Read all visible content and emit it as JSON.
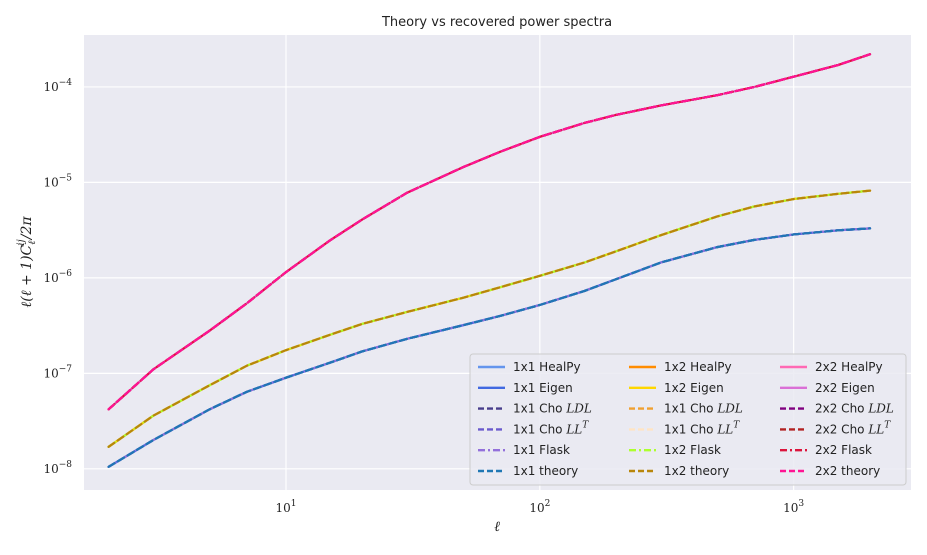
{
  "chart_data": {
    "type": "line",
    "title": "Theory vs recovered power spectra",
    "xlabel": "ℓ",
    "ylabel": "ℓ(ℓ + 1)C_ℓ^{ij}/2π",
    "xscale": "log",
    "yscale": "log",
    "xlim": [
      1.6,
      2900
    ],
    "ylim": [
      6e-09,
      0.00035
    ],
    "grid": true,
    "legend_position": "bottom-right",
    "xticks": [
      {
        "value": 10,
        "base": "10",
        "exp": "1"
      },
      {
        "value": 100,
        "base": "10",
        "exp": "2"
      },
      {
        "value": 1000,
        "base": "10",
        "exp": "3"
      }
    ],
    "yticks": [
      {
        "value": 1e-08,
        "base": "10",
        "exp": "−8"
      },
      {
        "value": 1e-07,
        "base": "10",
        "exp": "−7"
      },
      {
        "value": 1e-06,
        "base": "10",
        "exp": "−6"
      },
      {
        "value": 1e-05,
        "base": "10",
        "exp": "−5"
      },
      {
        "value": 0.0001,
        "base": "10",
        "exp": "−4"
      }
    ],
    "x": [
      2,
      3,
      5,
      7,
      10,
      15,
      20,
      30,
      50,
      70,
      100,
      150,
      200,
      300,
      500,
      700,
      1000,
      1500,
      2000
    ],
    "curves": {
      "c11": [
        1.05e-08,
        2e-08,
        4.2e-08,
        6.4e-08,
        9e-08,
        1.3e-07,
        1.7e-07,
        2.3e-07,
        3.2e-07,
        4e-07,
        5.2e-07,
        7.3e-07,
        9.7e-07,
        1.45e-06,
        2.1e-06,
        2.5e-06,
        2.85e-06,
        3.15e-06,
        3.3e-06
      ],
      "c12": [
        1.7e-08,
        3.6e-08,
        7.5e-08,
        1.2e-07,
        1.75e-07,
        2.55e-07,
        3.3e-07,
        4.4e-07,
        6.2e-07,
        8e-07,
        1.05e-06,
        1.45e-06,
        1.9e-06,
        2.8e-06,
        4.4e-06,
        5.6e-06,
        6.7e-06,
        7.6e-06,
        8.2e-06
      ],
      "c22": [
        4.2e-08,
        1.1e-07,
        2.8e-07,
        5.4e-07,
        1.15e-06,
        2.5e-06,
        4.1e-06,
        7.8e-06,
        1.45e-05,
        2.1e-05,
        3e-05,
        4.2e-05,
        5.1e-05,
        6.4e-05,
        8.2e-05,
        0.0001,
        0.000128,
        0.00017,
        0.00022
      ]
    },
    "series": [
      {
        "name": "1x1 HealPy",
        "curve": "c11",
        "color": "#6495ed",
        "dash": "solid"
      },
      {
        "name": "1x1 Eigen",
        "curve": "c11",
        "color": "#4169e1",
        "dash": "solid"
      },
      {
        "name": "1x1 Cho LDL",
        "curve": "c11",
        "color": "#483d8b",
        "dash": "dashed"
      },
      {
        "name": "1x1 Cho LL^T",
        "curve": "c11",
        "color": "#6a5acd",
        "dash": "dashed"
      },
      {
        "name": "1x1 Flask",
        "curve": "c11",
        "color": "#9370db",
        "dash": "dashdot"
      },
      {
        "name": "1x1 theory",
        "curve": "c11",
        "color": "#1f77b4",
        "dash": "dashed"
      },
      {
        "name": "1x2 HealPy",
        "curve": "c12",
        "color": "#ff8c00",
        "dash": "solid"
      },
      {
        "name": "1x2 Eigen",
        "curve": "c12",
        "color": "#ffd700",
        "dash": "solid"
      },
      {
        "name": "1x1 Cho LDL",
        "curve": "c12",
        "color": "#f0a030",
        "dash": "dashed"
      },
      {
        "name": "1x1 Cho LL^T",
        "curve": "c12",
        "color": "#ffe4c4",
        "dash": "dashed"
      },
      {
        "name": "1x2 Flask",
        "curve": "c12",
        "color": "#adff2f",
        "dash": "dashdot"
      },
      {
        "name": "1x2 theory",
        "curve": "c12",
        "color": "#b8860b",
        "dash": "dashed"
      },
      {
        "name": "2x2 HealPy",
        "curve": "c22",
        "color": "#ff69b4",
        "dash": "solid"
      },
      {
        "name": "2x2 Eigen",
        "curve": "c22",
        "color": "#da70d6",
        "dash": "solid"
      },
      {
        "name": "2x2 Cho LDL",
        "curve": "c22",
        "color": "#800080",
        "dash": "dashed"
      },
      {
        "name": "2x2 Cho LL^T",
        "curve": "c22",
        "color": "#b22222",
        "dash": "dashed"
      },
      {
        "name": "2x2 Flask",
        "curve": "c22",
        "color": "#dc143c",
        "dash": "dashdot"
      },
      {
        "name": "2x2 theory",
        "curve": "c22",
        "color": "#ff1493",
        "dash": "dashed"
      }
    ]
  }
}
